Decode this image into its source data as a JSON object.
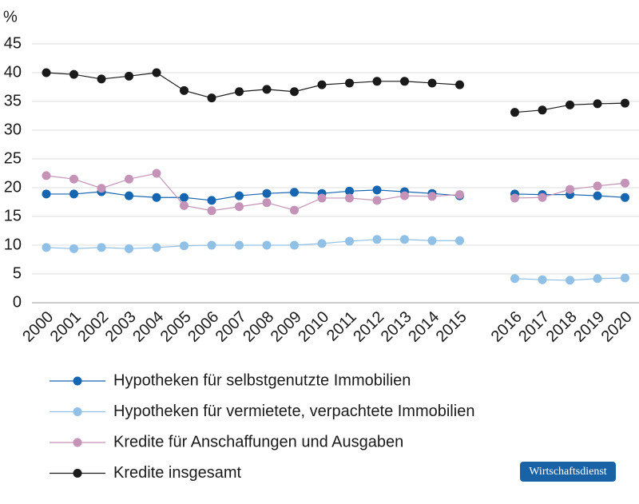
{
  "chart_data": {
    "type": "line",
    "y_label": "%",
    "categories": [
      "2000",
      "2001",
      "2002",
      "2003",
      "2004",
      "2005",
      "2006",
      "2007",
      "2008",
      "2009",
      "2010",
      "2011",
      "2012",
      "2013",
      "2014",
      "2015",
      null,
      "2016",
      "2017",
      "2018",
      "2019",
      "2020"
    ],
    "ylim": [
      0,
      45
    ],
    "yticks": [
      0,
      5,
      10,
      15,
      20,
      25,
      30,
      35,
      40,
      45
    ],
    "grid": true,
    "series": [
      {
        "name": "Hypotheken für selbstgenutzte Immobilien",
        "color": "#1565b0",
        "values": [
          18.9,
          18.9,
          19.3,
          18.6,
          18.3,
          18.3,
          17.8,
          18.6,
          19.0,
          19.2,
          19.0,
          19.4,
          19.6,
          19.3,
          19.0,
          18.6,
          null,
          18.9,
          18.8,
          18.8,
          18.6,
          18.3
        ]
      },
      {
        "name": "Hypotheken für vermietete, verpachtete Immobilien",
        "color": "#90c0e6",
        "values": [
          9.6,
          9.4,
          9.6,
          9.4,
          9.6,
          9.9,
          10.0,
          10.0,
          10.0,
          10.0,
          10.3,
          10.7,
          11.0,
          11.0,
          10.8,
          10.8,
          null,
          4.2,
          4.0,
          3.9,
          4.2,
          4.3
        ]
      },
      {
        "name": "Kredite für Anschaffungen und Ausgaben",
        "color": "#c493b7",
        "values": [
          22.1,
          21.5,
          19.9,
          21.5,
          22.5,
          16.9,
          16.0,
          16.7,
          17.4,
          16.1,
          18.2,
          18.2,
          17.8,
          18.6,
          18.5,
          18.8,
          null,
          18.2,
          18.3,
          19.7,
          20.3,
          20.8
        ]
      },
      {
        "name": "Kredite insgesamt",
        "color": "#1a1a1a",
        "values": [
          40.0,
          39.7,
          38.9,
          39.4,
          40.0,
          36.9,
          35.6,
          36.7,
          37.1,
          36.7,
          37.9,
          38.2,
          38.5,
          38.5,
          38.2,
          37.9,
          null,
          33.1,
          33.5,
          34.4,
          34.6,
          34.7
        ]
      }
    ]
  },
  "badge": "Wirtschaftsdienst"
}
